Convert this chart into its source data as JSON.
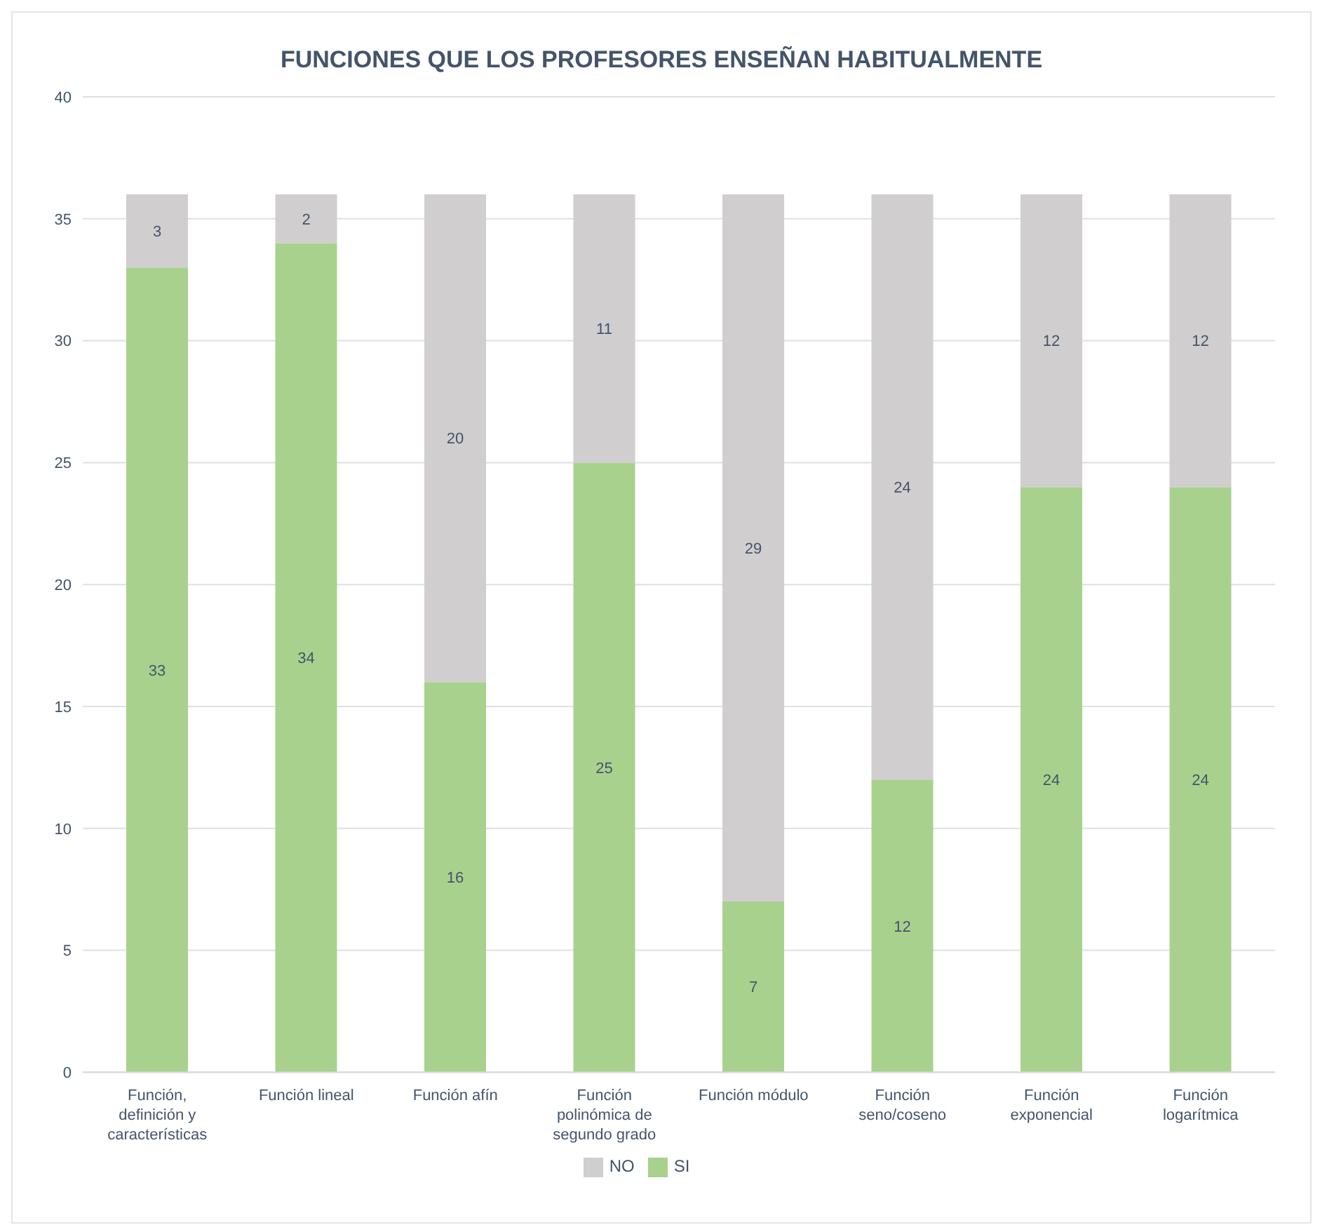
{
  "chart_data": {
    "type": "bar",
    "stacked": true,
    "title": "FUNCIONES QUE LOS PROFESORES ENSEÑAN HABITUALMENTE",
    "categories": [
      "Función, definición y características",
      "Función lineal",
      "Función afín",
      "Función polinómica de segundo grado",
      "Función módulo",
      "Función seno/coseno",
      "Función exponencial",
      "Función logarítmica"
    ],
    "series": [
      {
        "name": "SI",
        "color": "#a9d18e",
        "values": [
          33,
          34,
          16,
          25,
          7,
          12,
          24,
          24
        ]
      },
      {
        "name": "NO",
        "color": "#d0cece",
        "values": [
          3,
          2,
          20,
          11,
          29,
          24,
          12,
          12
        ]
      }
    ],
    "ylim": [
      0,
      40
    ],
    "yticks": [
      0,
      5,
      10,
      15,
      20,
      25,
      30,
      35,
      40
    ],
    "grid": "y",
    "data_labels": true,
    "legend": "bottom"
  }
}
